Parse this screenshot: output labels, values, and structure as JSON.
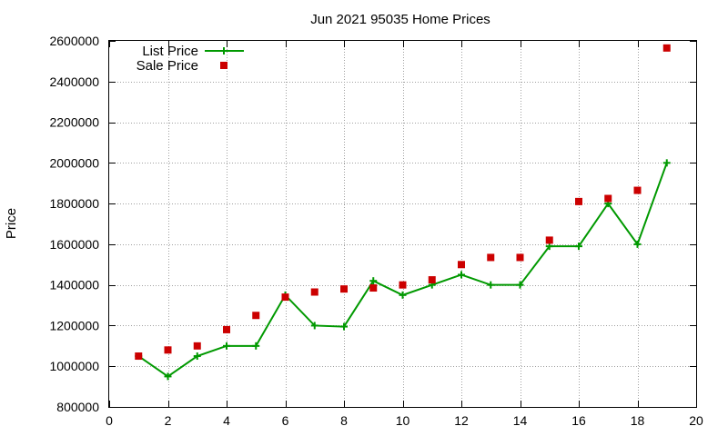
{
  "chart_data": {
    "type": "line",
    "title": "Jun 2021 95035 Home Prices",
    "xlabel": "",
    "ylabel": "Price",
    "xlim": [
      0,
      20
    ],
    "ylim": [
      800000,
      2600000
    ],
    "xticks": [
      0,
      2,
      4,
      6,
      8,
      10,
      12,
      14,
      16,
      18,
      20
    ],
    "yticks": [
      800000,
      1000000,
      1200000,
      1400000,
      1600000,
      1800000,
      2000000,
      2200000,
      2400000,
      2600000
    ],
    "grid": true,
    "legend_position": "top-left",
    "x": [
      1,
      2,
      3,
      4,
      5,
      6,
      7,
      8,
      9,
      10,
      11,
      12,
      13,
      14,
      15,
      16,
      17,
      18,
      19
    ],
    "series": [
      {
        "name": "List Price",
        "style": "line+cross",
        "color": "#009900",
        "values": [
          1050000,
          950000,
          1050000,
          1100000,
          1100000,
          1350000,
          1200000,
          1195000,
          1420000,
          1350000,
          1400000,
          1450000,
          1400000,
          1400000,
          1590000,
          1590000,
          1800000,
          1600000,
          2000000
        ]
      },
      {
        "name": "Sale Price",
        "style": "square",
        "color": "#cc0000",
        "values": [
          1050000,
          1080000,
          1100000,
          1180000,
          1250000,
          1340000,
          1365000,
          1380000,
          1385000,
          1400000,
          1425000,
          1500000,
          1535000,
          1535000,
          1620000,
          1810000,
          1825000,
          1865000,
          2565000
        ]
      }
    ]
  }
}
